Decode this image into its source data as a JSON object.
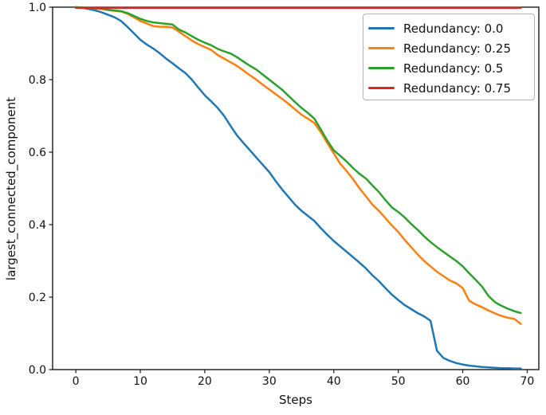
{
  "figure": {
    "background": "#ffffff",
    "spine_color": "#1a1a1a",
    "tick_color": "#262626",
    "text_color": "#111111"
  },
  "chart_data": {
    "type": "line",
    "title": "",
    "xlabel": "Steps",
    "ylabel": "largest_connected_component",
    "xlim": [
      -3.6,
      71.8
    ],
    "ylim": [
      0.0,
      1.0
    ],
    "xticks": [
      0,
      10,
      20,
      30,
      40,
      50,
      60,
      70
    ],
    "yticks": [
      "0.0",
      "0.2",
      "0.4",
      "0.6",
      "0.8",
      "1.0"
    ],
    "grid": false,
    "legend": {
      "position": "upper right",
      "border_color": "#b3b3b3",
      "background": "#ffffff"
    },
    "x": [
      0,
      1,
      2,
      3,
      4,
      5,
      6,
      7,
      8,
      9,
      10,
      11,
      12,
      13,
      14,
      15,
      16,
      17,
      18,
      19,
      20,
      21,
      22,
      23,
      24,
      25,
      26,
      27,
      28,
      29,
      30,
      31,
      32,
      33,
      34,
      35,
      36,
      37,
      38,
      39,
      40,
      41,
      42,
      43,
      44,
      45,
      46,
      47,
      48,
      49,
      50,
      51,
      52,
      53,
      54,
      55,
      56,
      57,
      58,
      59,
      60,
      61,
      62,
      63,
      64,
      65,
      66,
      67,
      68,
      69
    ],
    "series": [
      {
        "name": "Redundancy: 0.0",
        "color": "#1f77b4",
        "values": [
          1.0,
          0.998,
          0.995,
          0.991,
          0.986,
          0.979,
          0.972,
          0.962,
          0.946,
          0.928,
          0.91,
          0.897,
          0.886,
          0.873,
          0.858,
          0.845,
          0.831,
          0.818,
          0.8,
          0.778,
          0.757,
          0.74,
          0.722,
          0.7,
          0.672,
          0.646,
          0.625,
          0.605,
          0.585,
          0.565,
          0.545,
          0.52,
          0.497,
          0.476,
          0.455,
          0.438,
          0.424,
          0.41,
          0.39,
          0.372,
          0.355,
          0.34,
          0.325,
          0.31,
          0.295,
          0.279,
          0.26,
          0.244,
          0.225,
          0.207,
          0.192,
          0.178,
          0.167,
          0.156,
          0.147,
          0.135,
          0.052,
          0.032,
          0.024,
          0.018,
          0.014,
          0.011,
          0.009,
          0.007,
          0.006,
          0.005,
          0.004,
          0.004,
          0.003,
          0.003
        ]
      },
      {
        "name": "Redundancy: 0.25",
        "color": "#ff7f0e",
        "values": [
          1.0,
          0.999,
          0.998,
          0.996,
          0.995,
          0.992,
          0.99,
          0.988,
          0.982,
          0.972,
          0.962,
          0.955,
          0.948,
          0.946,
          0.946,
          0.944,
          0.932,
          0.92,
          0.908,
          0.898,
          0.89,
          0.882,
          0.868,
          0.858,
          0.848,
          0.838,
          0.825,
          0.812,
          0.8,
          0.786,
          0.773,
          0.76,
          0.747,
          0.733,
          0.718,
          0.703,
          0.692,
          0.68,
          0.655,
          0.625,
          0.597,
          0.568,
          0.548,
          0.525,
          0.5,
          0.478,
          0.455,
          0.438,
          0.418,
          0.398,
          0.38,
          0.358,
          0.338,
          0.318,
          0.3,
          0.285,
          0.27,
          0.258,
          0.246,
          0.238,
          0.225,
          0.19,
          0.18,
          0.172,
          0.163,
          0.155,
          0.148,
          0.143,
          0.14,
          0.126
        ]
      },
      {
        "name": "Redundancy: 0.5",
        "color": "#2ca02c",
        "values": [
          1.0,
          0.999,
          0.998,
          0.997,
          0.996,
          0.993,
          0.991,
          0.989,
          0.984,
          0.976,
          0.968,
          0.962,
          0.958,
          0.956,
          0.954,
          0.952,
          0.938,
          0.93,
          0.92,
          0.91,
          0.902,
          0.895,
          0.885,
          0.878,
          0.872,
          0.862,
          0.85,
          0.838,
          0.828,
          0.814,
          0.8,
          0.786,
          0.772,
          0.755,
          0.738,
          0.722,
          0.708,
          0.692,
          0.662,
          0.632,
          0.605,
          0.59,
          0.574,
          0.556,
          0.54,
          0.527,
          0.508,
          0.49,
          0.468,
          0.448,
          0.435,
          0.42,
          0.402,
          0.386,
          0.368,
          0.352,
          0.338,
          0.325,
          0.312,
          0.3,
          0.285,
          0.266,
          0.248,
          0.229,
          0.203,
          0.186,
          0.176,
          0.168,
          0.161,
          0.156
        ]
      },
      {
        "name": "Redundancy: 0.75",
        "color": "#d62728",
        "values": [
          0.998,
          0.998,
          0.998,
          0.998,
          0.998,
          0.998,
          0.998,
          0.998,
          0.998,
          0.998,
          0.998,
          0.998,
          0.998,
          0.998,
          0.998,
          0.998,
          0.998,
          0.998,
          0.998,
          0.998,
          0.998,
          0.998,
          0.998,
          0.998,
          0.998,
          0.998,
          0.998,
          0.998,
          0.998,
          0.998,
          0.998,
          0.998,
          0.998,
          0.998,
          0.998,
          0.998,
          0.998,
          0.998,
          0.998,
          0.998,
          0.998,
          0.998,
          0.998,
          0.998,
          0.998,
          0.998,
          0.998,
          0.998,
          0.998,
          0.998,
          0.998,
          0.998,
          0.998,
          0.998,
          0.998,
          0.998,
          0.998,
          0.998,
          0.998,
          0.998,
          0.998,
          0.998,
          0.998,
          0.998,
          0.998,
          0.998,
          0.998,
          0.998,
          0.998,
          0.998
        ]
      }
    ]
  }
}
